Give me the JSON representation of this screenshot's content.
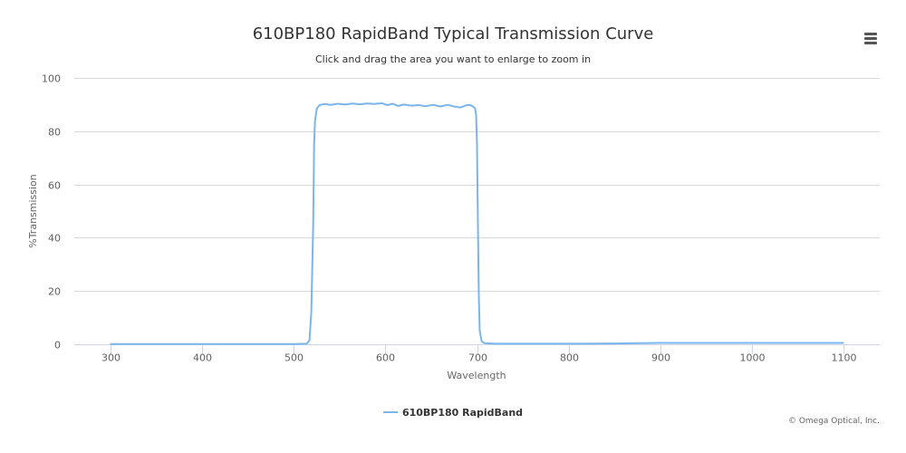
{
  "chart_data": {
    "type": "line",
    "title": "610BP180 RapidBand Typical Transmission Curve",
    "subtitle": "Click and drag the area you want to enlarge to zoom in",
    "xlabel": "Wavelength",
    "ylabel": "%Transmission",
    "xlim": [
      260,
      1140
    ],
    "ylim": [
      0,
      100
    ],
    "x_ticks": [
      300,
      400,
      500,
      600,
      700,
      800,
      900,
      1000,
      1100
    ],
    "y_ticks": [
      0,
      20,
      40,
      60,
      80,
      100
    ],
    "grid": "horizontal",
    "legend_position": "bottom-center",
    "series": [
      {
        "name": "610BP180 RapidBand",
        "color": "#7cb5ec",
        "points": [
          [
            300,
            0.1
          ],
          [
            400,
            0.1
          ],
          [
            500,
            0.1
          ],
          [
            514,
            0.2
          ],
          [
            517,
            1.5
          ],
          [
            519,
            12
          ],
          [
            521,
            45
          ],
          [
            522,
            75
          ],
          [
            523,
            84
          ],
          [
            525,
            88.5
          ],
          [
            528,
            89.8
          ],
          [
            533,
            90.2
          ],
          [
            540,
            89.9
          ],
          [
            548,
            90.3
          ],
          [
            556,
            90.0
          ],
          [
            564,
            90.4
          ],
          [
            572,
            90.1
          ],
          [
            580,
            90.4
          ],
          [
            588,
            90.2
          ],
          [
            596,
            90.5
          ],
          [
            602,
            89.8
          ],
          [
            608,
            90.3
          ],
          [
            614,
            89.5
          ],
          [
            620,
            90.0
          ],
          [
            628,
            89.6
          ],
          [
            636,
            89.8
          ],
          [
            644,
            89.4
          ],
          [
            652,
            89.9
          ],
          [
            660,
            89.3
          ],
          [
            668,
            89.9
          ],
          [
            676,
            89.2
          ],
          [
            682,
            88.9
          ],
          [
            688,
            89.7
          ],
          [
            692,
            89.9
          ],
          [
            696,
            89.2
          ],
          [
            698,
            88.5
          ],
          [
            699,
            86
          ],
          [
            700,
            75
          ],
          [
            701,
            45
          ],
          [
            702,
            18
          ],
          [
            703,
            5
          ],
          [
            705,
            1.2
          ],
          [
            708,
            0.4
          ],
          [
            720,
            0.2
          ],
          [
            800,
            0.2
          ],
          [
            850,
            0.3
          ],
          [
            880,
            0.4
          ],
          [
            900,
            0.5
          ],
          [
            950,
            0.5
          ],
          [
            1000,
            0.5
          ],
          [
            1050,
            0.5
          ],
          [
            1100,
            0.5
          ]
        ]
      }
    ]
  },
  "credits": "© Omega Optical, Inc."
}
